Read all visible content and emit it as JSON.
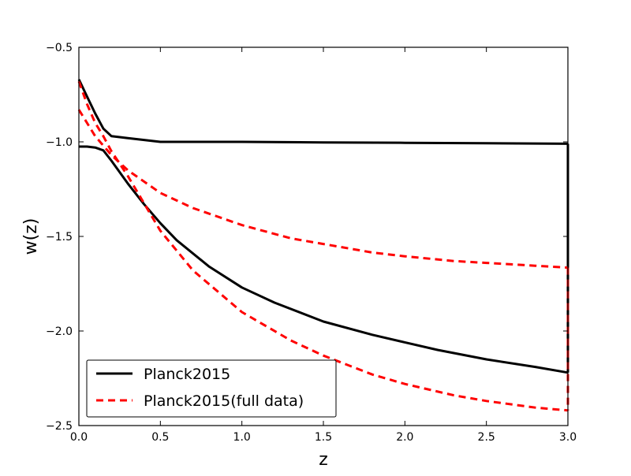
{
  "chart_data": {
    "type": "line",
    "xlabel": "z",
    "ylabel": "w(z)",
    "xlim": [
      0.0,
      3.0
    ],
    "ylim": [
      -2.5,
      -0.5
    ],
    "x_ticks": [
      "0.0",
      "0.5",
      "1.0",
      "1.5",
      "2.0",
      "2.5",
      "3.0"
    ],
    "y_ticks": [
      "−0.5",
      "−1.0",
      "−1.5",
      "−2.0",
      "−2.5"
    ],
    "legend_position": "lower-left",
    "series": [
      {
        "name": "Planck2015",
        "color": "#000000",
        "style": "solid",
        "in_legend": true,
        "curves": [
          {
            "x": [
              0.0,
              0.05,
              0.1,
              0.15,
              0.2,
              0.25,
              0.3,
              0.4,
              0.5,
              1.0,
              1.5,
              2.0,
              2.5,
              3.0
            ],
            "y": [
              -0.67,
              -0.76,
              -0.85,
              -0.93,
              -0.97,
              -0.975,
              -0.98,
              -0.99,
              -1.0,
              -1.0,
              -1.003,
              -1.005,
              -1.007,
              -1.01
            ]
          },
          {
            "x": [
              3.0,
              3.0
            ],
            "y": [
              -1.01,
              -2.22
            ]
          },
          {
            "x": [
              0.0,
              0.05,
              0.1,
              0.15,
              0.2,
              0.3,
              0.4,
              0.5,
              0.6,
              0.8,
              1.0,
              1.2,
              1.5,
              1.8,
              2.0,
              2.2,
              2.5,
              2.8,
              3.0
            ],
            "y": [
              -1.025,
              -1.025,
              -1.03,
              -1.045,
              -1.1,
              -1.22,
              -1.33,
              -1.43,
              -1.52,
              -1.66,
              -1.77,
              -1.85,
              -1.95,
              -2.02,
              -2.06,
              -2.1,
              -2.15,
              -2.19,
              -2.22
            ]
          }
        ]
      },
      {
        "name": "Planck2015(full data)",
        "color": "#ff0000",
        "style": "dashed",
        "in_legend": true,
        "curves": [
          {
            "x": [
              0.0,
              0.1,
              0.2,
              0.3,
              0.5,
              0.7,
              1.0,
              1.3,
              1.5,
              1.8,
              2.0,
              2.3,
              2.5,
              2.8,
              3.0
            ],
            "y": [
              -0.83,
              -0.97,
              -1.07,
              -1.15,
              -1.27,
              -1.35,
              -1.44,
              -1.51,
              -1.54,
              -1.585,
              -1.605,
              -1.63,
              -1.64,
              -1.655,
              -1.665
            ]
          },
          {
            "x": [
              3.0,
              3.0
            ],
            "y": [
              -1.665,
              -2.42
            ]
          },
          {
            "x": [
              0.0,
              0.05,
              0.1,
              0.15,
              0.2,
              0.3,
              0.5,
              0.7,
              1.0,
              1.3,
              1.5,
              1.8,
              2.0,
              2.3,
              2.5,
              2.8,
              3.0
            ],
            "y": [
              -0.68,
              -0.8,
              -0.9,
              -0.97,
              -1.05,
              -1.18,
              -1.47,
              -1.68,
              -1.9,
              -2.05,
              -2.13,
              -2.23,
              -2.28,
              -2.34,
              -2.37,
              -2.405,
              -2.42
            ]
          }
        ]
      }
    ]
  }
}
